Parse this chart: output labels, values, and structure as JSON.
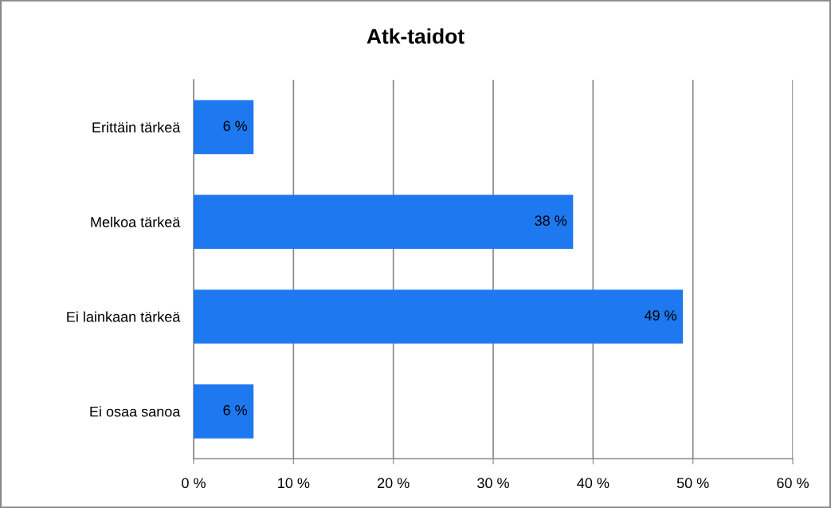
{
  "chart_data": {
    "type": "bar",
    "orientation": "horizontal",
    "title": "Atk-taidot",
    "categories": [
      "Erittäin tärkeä",
      "Melkoa tärkeä",
      "Ei lainkaan tärkeä",
      "Ei osaa sanoa"
    ],
    "values": [
      6,
      38,
      49,
      6
    ],
    "value_labels": [
      "6 %",
      "38 %",
      "49 %",
      "6 %"
    ],
    "color": "#1e78f0",
    "xlim": [
      0,
      60
    ],
    "xticks": [
      {
        "value": 0,
        "label": "0 %"
      },
      {
        "value": 10,
        "label": "10 %"
      },
      {
        "value": 20,
        "label": "20 %"
      },
      {
        "value": 30,
        "label": "30 %"
      },
      {
        "value": 40,
        "label": "40 %"
      },
      {
        "value": 50,
        "label": "50 %"
      },
      {
        "value": 60,
        "label": "60 %"
      }
    ],
    "grid": "x"
  }
}
